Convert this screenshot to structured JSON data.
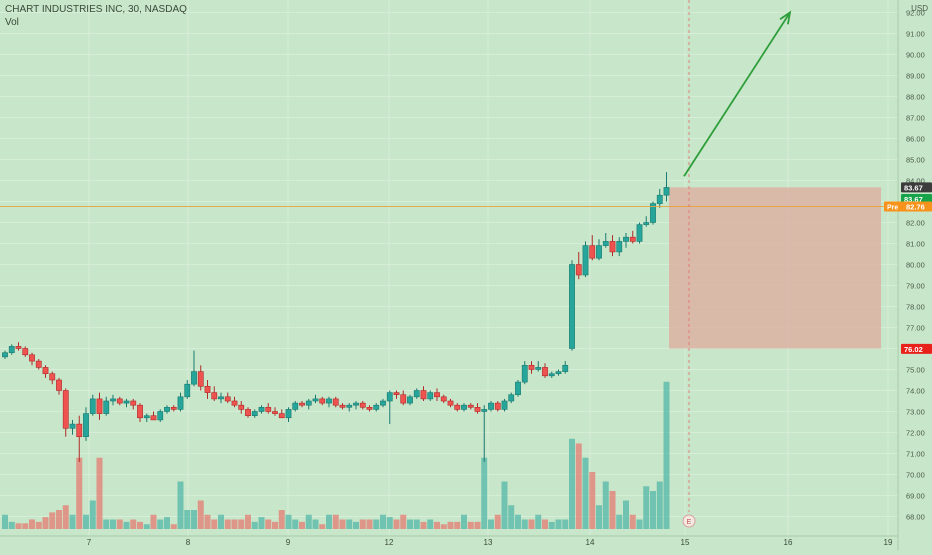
{
  "header": {
    "title": "CHART INDUSTRIES INC, 30, NASDAQ",
    "volume_label": "Vol",
    "currency": "USD"
  },
  "colors": {
    "background": "#c8e6c9",
    "up": "#26a69a",
    "down": "#ef5350",
    "arrow": "#2e9e3a",
    "zone": "#dcb2a3",
    "pre": "#f7931a",
    "last": "#3c3c3c",
    "green_tag": "#17a34a",
    "stop": "#e8211a"
  },
  "chart_data": {
    "type": "candlestick",
    "ylim": [
      67.5,
      92.7
    ],
    "y_ticks": [
      "68.00",
      "69.00",
      "70.00",
      "71.00",
      "72.00",
      "73.00",
      "74.00",
      "75.00",
      "76.00",
      "77.00",
      "78.00",
      "79.00",
      "80.00",
      "81.00",
      "82.00",
      "83.00",
      "84.00",
      "85.00",
      "86.00",
      "87.00",
      "88.00",
      "89.00",
      "90.00",
      "91.00",
      "92.00"
    ],
    "x_ticks": [
      "7",
      "8",
      "9",
      "12",
      "13",
      "14",
      "15",
      "16",
      "19"
    ],
    "earnings_marker": "E",
    "price_labels": [
      {
        "label": "83.67",
        "value": 83.67,
        "style": "last"
      },
      {
        "label": "83.67",
        "value": 83.12,
        "style": "green"
      },
      {
        "label": "Pre",
        "value": 82.76,
        "style": "pre"
      },
      {
        "label": "82.76",
        "value": 82.76,
        "style": "pre"
      },
      {
        "label": "76.02",
        "value": 75.98,
        "style": "stop"
      }
    ],
    "pre_line": 82.76,
    "zone": {
      "top": 83.67,
      "bottom": 76.0
    },
    "arrow": {
      "from": 84.2,
      "to": 92.0
    },
    "candles": [
      [
        75.6,
        75.9,
        75.5,
        75.8,
        3
      ],
      [
        75.8,
        76.2,
        75.7,
        76.1,
        1.5
      ],
      [
        76.1,
        76.3,
        75.9,
        76.0,
        1.2
      ],
      [
        76.0,
        76.1,
        75.6,
        75.7,
        1.2
      ],
      [
        75.7,
        75.8,
        75.2,
        75.4,
        2
      ],
      [
        75.4,
        75.5,
        75.0,
        75.1,
        1.5
      ],
      [
        75.1,
        75.2,
        74.6,
        74.8,
        2.5
      ],
      [
        74.8,
        74.9,
        74.3,
        74.5,
        3.5
      ],
      [
        74.5,
        74.6,
        73.8,
        74.0,
        4
      ],
      [
        74.0,
        74.1,
        71.8,
        72.2,
        5
      ],
      [
        72.2,
        72.6,
        71.9,
        72.4,
        3
      ],
      [
        72.4,
        72.8,
        70.6,
        71.8,
        15
      ],
      [
        71.8,
        73.2,
        71.6,
        72.9,
        3
      ],
      [
        72.9,
        73.8,
        72.8,
        73.6,
        6
      ],
      [
        73.6,
        73.9,
        72.6,
        72.9,
        15
      ],
      [
        72.9,
        73.7,
        72.8,
        73.5,
        2
      ],
      [
        73.5,
        73.8,
        73.3,
        73.6,
        2
      ],
      [
        73.6,
        73.7,
        73.3,
        73.4,
        2
      ],
      [
        73.4,
        73.6,
        73.2,
        73.5,
        1.5
      ],
      [
        73.5,
        73.6,
        73.1,
        73.3,
        2
      ],
      [
        73.3,
        73.4,
        72.5,
        72.7,
        1.5
      ],
      [
        72.7,
        72.9,
        72.5,
        72.8,
        1
      ],
      [
        72.8,
        73.0,
        72.6,
        72.6,
        3
      ],
      [
        72.6,
        73.1,
        72.5,
        73.0,
        2
      ],
      [
        73.0,
        73.3,
        72.9,
        73.2,
        2.5
      ],
      [
        73.2,
        73.3,
        73.0,
        73.1,
        1
      ],
      [
        73.1,
        73.9,
        73.0,
        73.7,
        10
      ],
      [
        73.7,
        74.5,
        73.6,
        74.3,
        4
      ],
      [
        74.3,
        75.9,
        74.2,
        74.9,
        4
      ],
      [
        74.9,
        75.2,
        74.0,
        74.2,
        6
      ],
      [
        74.2,
        74.5,
        73.6,
        73.9,
        3
      ],
      [
        73.9,
        74.2,
        73.5,
        73.6,
        2
      ],
      [
        73.6,
        73.9,
        73.4,
        73.7,
        3
      ],
      [
        73.7,
        73.9,
        73.4,
        73.5,
        2
      ],
      [
        73.5,
        73.7,
        73.2,
        73.3,
        2
      ],
      [
        73.3,
        73.5,
        72.9,
        73.1,
        2
      ],
      [
        73.1,
        73.2,
        72.7,
        72.8,
        3
      ],
      [
        72.8,
        73.1,
        72.7,
        73.0,
        1.5
      ],
      [
        73.0,
        73.3,
        72.9,
        73.2,
        2.5
      ],
      [
        73.2,
        73.4,
        72.9,
        73.0,
        2
      ],
      [
        73.0,
        73.2,
        72.8,
        72.9,
        1.5
      ],
      [
        72.9,
        73.1,
        72.7,
        72.7,
        4
      ],
      [
        72.7,
        73.2,
        72.5,
        73.1,
        3
      ],
      [
        73.1,
        73.5,
        73.0,
        73.4,
        2
      ],
      [
        73.4,
        73.5,
        73.2,
        73.3,
        1.5
      ],
      [
        73.3,
        73.6,
        73.1,
        73.5,
        3
      ],
      [
        73.5,
        73.8,
        73.4,
        73.6,
        2
      ],
      [
        73.6,
        73.7,
        73.3,
        73.4,
        1
      ],
      [
        73.4,
        73.7,
        73.2,
        73.6,
        3
      ],
      [
        73.6,
        73.7,
        73.2,
        73.3,
        3
      ],
      [
        73.3,
        73.4,
        73.1,
        73.2,
        2
      ],
      [
        73.2,
        73.4,
        73.0,
        73.3,
        2
      ],
      [
        73.3,
        73.5,
        73.1,
        73.4,
        1.5
      ],
      [
        73.4,
        73.5,
        73.1,
        73.2,
        2
      ],
      [
        73.2,
        73.3,
        73.0,
        73.1,
        2
      ],
      [
        73.1,
        73.4,
        73.0,
        73.3,
        2
      ],
      [
        73.3,
        73.6,
        73.2,
        73.5,
        3
      ],
      [
        73.5,
        74.0,
        72.4,
        73.9,
        2.5
      ],
      [
        73.9,
        74.0,
        73.6,
        73.8,
        2
      ],
      [
        73.8,
        74.0,
        73.3,
        73.4,
        3
      ],
      [
        73.4,
        73.8,
        73.3,
        73.7,
        2
      ],
      [
        73.7,
        74.1,
        73.6,
        74.0,
        2
      ],
      [
        74.0,
        74.2,
        73.5,
        73.6,
        1.5
      ],
      [
        73.6,
        74.0,
        73.5,
        73.9,
        2
      ],
      [
        73.9,
        74.1,
        73.5,
        73.7,
        1.5
      ],
      [
        73.7,
        73.8,
        73.4,
        73.5,
        1
      ],
      [
        73.5,
        73.6,
        73.2,
        73.3,
        1.5
      ],
      [
        73.3,
        73.4,
        73.0,
        73.1,
        1.5
      ],
      [
        73.1,
        73.4,
        73.0,
        73.3,
        3
      ],
      [
        73.3,
        73.4,
        73.1,
        73.2,
        1.5
      ],
      [
        73.2,
        73.4,
        72.9,
        73.0,
        1.5
      ],
      [
        73.0,
        73.3,
        70.6,
        73.1,
        15
      ],
      [
        73.1,
        73.5,
        73.0,
        73.4,
        2
      ],
      [
        73.4,
        73.5,
        73.0,
        73.1,
        3
      ],
      [
        73.1,
        73.6,
        73.0,
        73.5,
        10
      ],
      [
        73.5,
        73.9,
        73.4,
        73.8,
        5
      ],
      [
        73.8,
        74.5,
        73.7,
        74.4,
        3
      ],
      [
        74.4,
        75.4,
        74.3,
        75.2,
        2
      ],
      [
        75.2,
        75.4,
        74.8,
        75.0,
        2
      ],
      [
        75.0,
        75.4,
        74.9,
        75.1,
        3
      ],
      [
        75.1,
        75.3,
        74.6,
        74.7,
        2
      ],
      [
        74.7,
        74.9,
        74.6,
        74.8,
        1.5
      ],
      [
        74.8,
        75.0,
        74.7,
        74.9,
        2
      ],
      [
        74.9,
        75.4,
        74.8,
        75.2,
        2
      ],
      [
        76.0,
        80.2,
        75.9,
        80.0,
        19
      ],
      [
        80.0,
        80.6,
        79.3,
        79.5,
        18
      ],
      [
        79.5,
        81.1,
        79.4,
        80.9,
        15
      ],
      [
        80.9,
        81.4,
        80.2,
        80.3,
        12
      ],
      [
        80.3,
        81.2,
        80.2,
        80.9,
        5
      ],
      [
        80.9,
        81.5,
        80.8,
        81.1,
        10
      ],
      [
        81.1,
        81.4,
        80.4,
        80.6,
        8
      ],
      [
        80.6,
        81.3,
        80.4,
        81.1,
        3
      ],
      [
        81.1,
        81.5,
        80.8,
        81.3,
        6
      ],
      [
        81.3,
        81.6,
        81.0,
        81.1,
        3
      ],
      [
        81.1,
        82.0,
        81.0,
        81.9,
        2
      ],
      [
        81.9,
        82.3,
        81.8,
        82.0,
        9
      ],
      [
        82.0,
        83.0,
        81.9,
        82.9,
        8
      ],
      [
        82.9,
        83.6,
        82.7,
        83.3,
        10
      ],
      [
        83.3,
        84.4,
        83.0,
        83.67,
        31
      ]
    ]
  }
}
